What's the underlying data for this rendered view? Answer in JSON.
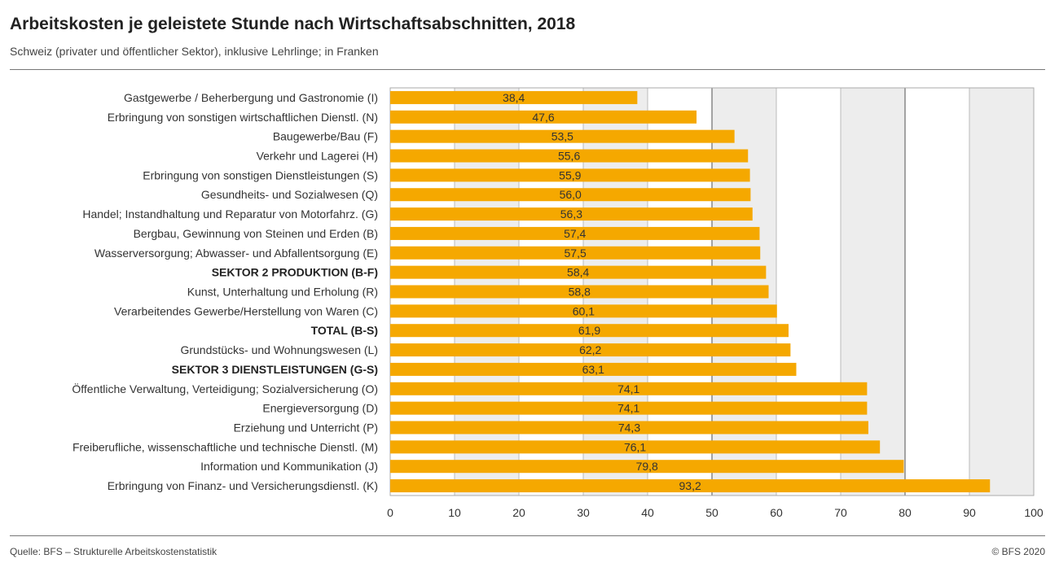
{
  "header": {
    "title": "Arbeitskosten je geleistete Stunde nach Wirtschaftsabschnitten, 2018",
    "subtitle": "Schweiz (privater und öffentlicher Sektor), inklusive Lehrlinge; in Franken"
  },
  "footer": {
    "source": "Quelle: BFS – Strukturelle Arbeitskostenstatistik",
    "copyright": "© BFS 2020"
  },
  "colors": {
    "bar": "#F5A800",
    "plot_bg": "#EDEDED",
    "grid": "#BBBBBB",
    "grid_major": "#888888"
  },
  "chart_data": {
    "type": "bar",
    "orientation": "horizontal",
    "title": "Arbeitskosten je geleistete Stunde nach Wirtschaftsabschnitten, 2018",
    "subtitle": "Schweiz (privater und öffentlicher Sektor), inklusive Lehrlinge; in Franken",
    "xlim": [
      0,
      100
    ],
    "x_ticks": [
      0,
      10,
      20,
      30,
      40,
      50,
      60,
      70,
      80,
      90,
      100
    ],
    "grid": true,
    "categories": [
      "Gastgewerbe / Beherbergung und Gastronomie (I)",
      "Erbringung von sonstigen wirtschaftlichen Dienstl. (N)",
      "Baugewerbe/Bau (F)",
      "Verkehr und Lagerei (H)",
      "Erbringung von sonstigen Dienstleistungen (S)",
      "Gesundheits- und Sozialwesen (Q)",
      "Handel; Instandhaltung und Reparatur von Motorfahrz. (G)",
      "Bergbau, Gewinnung von Steinen und Erden (B)",
      "Wasserversorgung; Abwasser- und Abfallentsorgung (E)",
      "SEKTOR 2 PRODUKTION (B-F)",
      "Kunst, Unterhaltung und Erholung (R)",
      "Verarbeitendes Gewerbe/Herstellung von Waren (C)",
      "TOTAL (B-S)",
      "Grundstücks- und Wohnungswesen (L)",
      "SEKTOR 3 DIENSTLEISTUNGEN (G-S)",
      "Öffentliche Verwaltung, Verteidigung; Sozialversicherung (O)",
      "Energieversorgung (D)",
      "Erziehung und Unterricht (P)",
      "Freiberufliche, wissenschaftliche und technische Dienstl. (M)",
      "Information und Kommunikation (J)",
      "Erbringung von Finanz- und Versicherungsdienstl. (K)"
    ],
    "bold_categories": [
      "SEKTOR 2 PRODUKTION (B-F)",
      "TOTAL (B-S)",
      "SEKTOR 3 DIENSTLEISTUNGEN (G-S)"
    ],
    "values": [
      38.4,
      47.6,
      53.5,
      55.6,
      55.9,
      56.0,
      56.3,
      57.4,
      57.5,
      58.4,
      58.8,
      60.1,
      61.9,
      62.2,
      63.1,
      74.1,
      74.1,
      74.3,
      76.1,
      79.8,
      93.2
    ],
    "value_labels": [
      "38,4",
      "47,6",
      "53,5",
      "55,6",
      "55,9",
      "56,0",
      "56,3",
      "57,4",
      "57,5",
      "58,4",
      "58,8",
      "60,1",
      "61,9",
      "62,2",
      "63,1",
      "74,1",
      "74,1",
      "74,3",
      "76,1",
      "79,8",
      "93,2"
    ]
  }
}
